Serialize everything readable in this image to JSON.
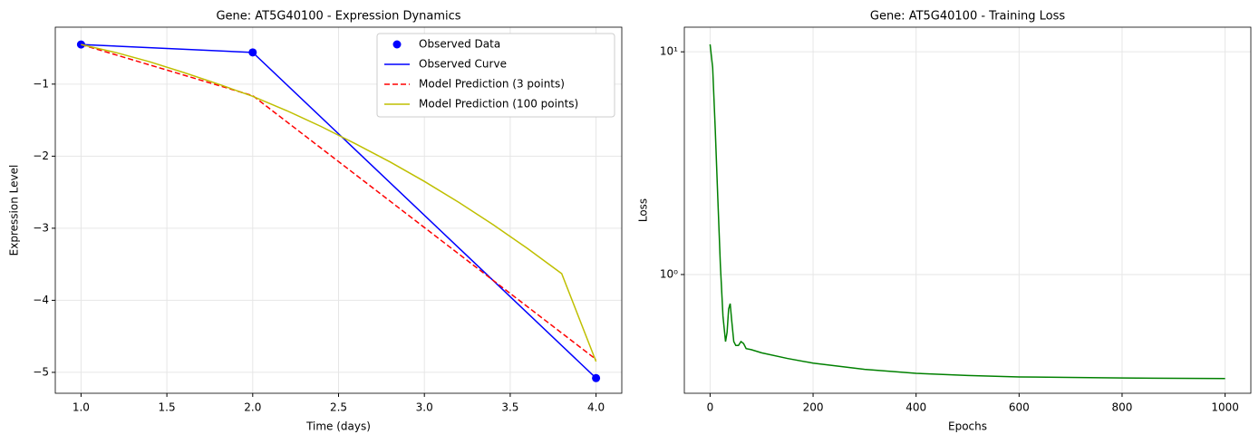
{
  "chart_data": [
    {
      "type": "line",
      "title": "Gene: AT5G40100 - Expression Dynamics",
      "xlabel": "Time (days)",
      "ylabel": "Expression Level",
      "xlim": [
        0.85,
        4.15
      ],
      "ylim": [
        -5.29,
        -0.21
      ],
      "xticks": [
        {
          "value": 1.0,
          "label": "1.0"
        },
        {
          "value": 1.5,
          "label": "1.5"
        },
        {
          "value": 2.0,
          "label": "2.0"
        },
        {
          "value": 2.5,
          "label": "2.5"
        },
        {
          "value": 3.0,
          "label": "3.0"
        },
        {
          "value": 3.5,
          "label": "3.5"
        },
        {
          "value": 4.0,
          "label": "4.0"
        }
      ],
      "yticks": [
        {
          "value": -1,
          "label": "−1"
        },
        {
          "value": -2,
          "label": "−2"
        },
        {
          "value": -3,
          "label": "−3"
        },
        {
          "value": -4,
          "label": "−4"
        },
        {
          "value": -5,
          "label": "−5"
        }
      ],
      "grid": true,
      "legend": "upper right",
      "series": [
        {
          "name": "Observed Data",
          "kind": "scatter",
          "color": "#0000ff",
          "x": [
            1,
            2,
            4
          ],
          "values": [
            -0.45,
            -0.56,
            -5.08
          ]
        },
        {
          "name": "Observed Curve",
          "kind": "line",
          "color": "#0000ff",
          "x": [
            1,
            2,
            4
          ],
          "values": [
            -0.45,
            -0.56,
            -5.08
          ]
        },
        {
          "name": "Model Prediction (3 points)",
          "kind": "dashed",
          "color": "#ff0000",
          "x": [
            1,
            2,
            4
          ],
          "values": [
            -0.45,
            -1.16,
            -4.82
          ]
        },
        {
          "name": "Model Prediction (100 points)",
          "kind": "line",
          "color": "#bfbf00",
          "x": [
            1.0,
            1.2,
            1.4,
            1.6,
            1.8,
            2.0,
            2.2,
            2.4,
            2.6,
            2.8,
            3.0,
            3.2,
            3.4,
            3.6,
            3.8,
            4.0
          ],
          "values": [
            -0.45,
            -0.56,
            -0.69,
            -0.84,
            -1.0,
            -1.17,
            -1.37,
            -1.59,
            -1.83,
            -2.08,
            -2.35,
            -2.64,
            -2.95,
            -3.28,
            -3.63,
            -4.85
          ]
        }
      ]
    },
    {
      "type": "line",
      "title": "Gene: AT5G40100 - Training Loss",
      "xlabel": "Epochs",
      "ylabel": "Loss",
      "xlim": [
        -50,
        1050
      ],
      "ylim": [
        0.293,
        12.9
      ],
      "ylog": true,
      "xticks": [
        0,
        200,
        400,
        600,
        800,
        1000
      ],
      "yticks": [
        {
          "value": 1,
          "label": "10⁰"
        },
        {
          "value": 10,
          "label": "10¹"
        }
      ],
      "grid": true,
      "series": [
        {
          "name": "Loss",
          "kind": "line",
          "color": "#008000",
          "x": [
            0,
            5,
            10,
            15,
            20,
            25,
            30,
            33,
            36,
            39,
            42,
            46,
            50,
            55,
            60,
            65,
            70,
            80,
            100,
            150,
            200,
            300,
            400,
            500,
            600,
            800,
            1000
          ],
          "values": [
            10.8,
            8.5,
            4.5,
            2.2,
            1.1,
            0.65,
            0.5,
            0.55,
            0.7,
            0.74,
            0.62,
            0.5,
            0.48,
            0.48,
            0.5,
            0.49,
            0.465,
            0.46,
            0.445,
            0.42,
            0.4,
            0.375,
            0.36,
            0.352,
            0.347,
            0.343,
            0.341
          ]
        }
      ]
    }
  ]
}
